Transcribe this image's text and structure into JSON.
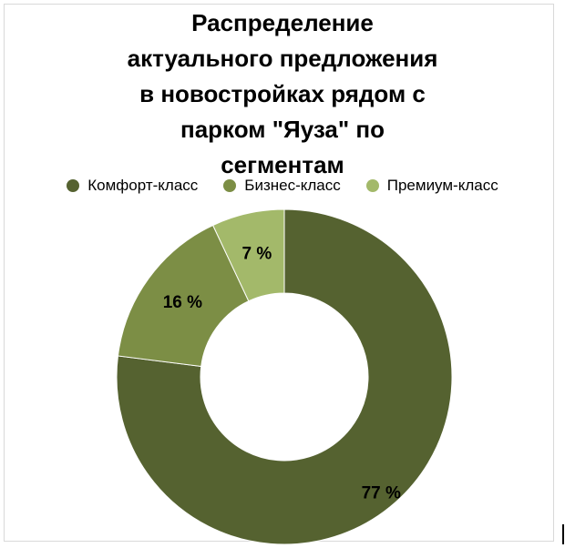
{
  "chart_data": {
    "type": "pie",
    "variant": "donut",
    "title": "Распределение\nактуального предложения\nв новостройках рядом с\nпарком \"Яуза\" по\nсегментам",
    "legend_position": "top",
    "series": [
      {
        "name": "Комфорт-класс",
        "value": 77,
        "label": "77 %",
        "color": "#556230"
      },
      {
        "name": "Бизнес-класс",
        "value": 16,
        "label": "16 %",
        "color": "#7c8e45"
      },
      {
        "name": "Премиум-класс",
        "value": 7,
        "label": "7 %",
        "color": "#a3b96a"
      }
    ]
  }
}
